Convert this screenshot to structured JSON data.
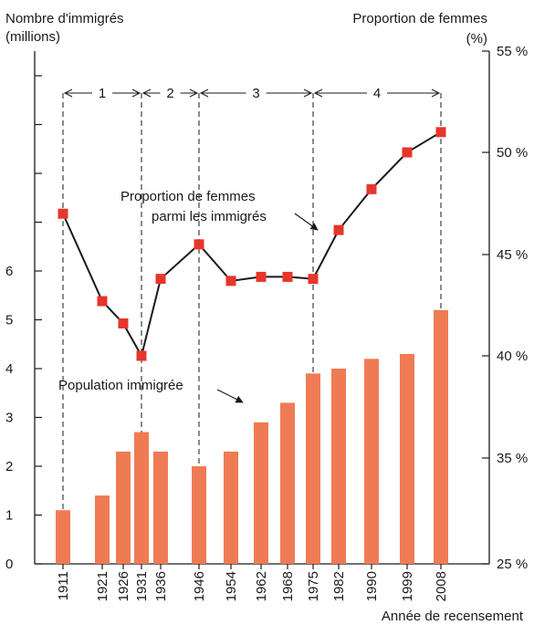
{
  "chart_data": {
    "type": "bar+line",
    "left_axis": {
      "label_line1": "Nombre d'immigrés",
      "label_line2": "(millions)",
      "ticks": [
        "0",
        "1",
        "2",
        "3",
        "4",
        "5",
        "6"
      ],
      "ylim": [
        0,
        10
      ]
    },
    "right_axis": {
      "label_line1": "Proportion de femmes",
      "label_line2": "(%)",
      "ticks": [
        "25 %",
        "35 %",
        "40 %",
        "45 %",
        "50 %",
        "55 %"
      ],
      "tick_values": [
        25,
        35,
        40,
        45,
        50,
        55
      ]
    },
    "xlabel": "Année de recensement",
    "categories": [
      "1911",
      "1921",
      "1926",
      "1931",
      "1936",
      "1946",
      "1954",
      "1962",
      "1968",
      "1975",
      "1982",
      "1990",
      "1999",
      "2008"
    ],
    "series": [
      {
        "name": "Population immigrée",
        "type": "bar",
        "color": "#ef7b55",
        "values": [
          1.1,
          1.4,
          2.3,
          2.7,
          2.3,
          2.0,
          2.3,
          2.9,
          3.3,
          3.9,
          4.0,
          4.2,
          4.3,
          5.2
        ]
      },
      {
        "name": "Proportion de femmes parmi les immigrés",
        "type": "line",
        "color": "#e8352b",
        "values": [
          47.0,
          42.7,
          41.6,
          40.0,
          43.8,
          45.5,
          43.7,
          43.9,
          43.9,
          43.8,
          46.2,
          48.2,
          50.0,
          51.0
        ]
      }
    ],
    "annotations": {
      "bar_label": "Population immigrée",
      "line_label_line1": "Proportion de femmes",
      "line_label_line2": "parmi les immigrés"
    },
    "periods": [
      {
        "label": "1",
        "from": "1911",
        "to": "1931"
      },
      {
        "label": "2",
        "from": "1931",
        "to": "1946"
      },
      {
        "label": "3",
        "from": "1946",
        "to": "1975"
      },
      {
        "label": "4",
        "from": "1975",
        "to": "2008"
      }
    ],
    "grid": false
  }
}
